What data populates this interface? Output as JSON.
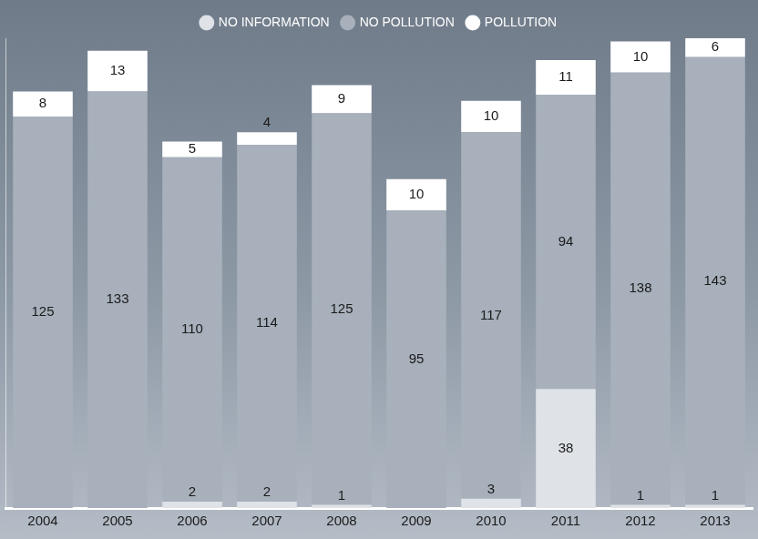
{
  "chart_data": {
    "type": "bar",
    "stacked": true,
    "data_labels": true,
    "tick_labels": "x",
    "legend": "top",
    "grid": false,
    "categories": [
      "2004",
      "2005",
      "2006",
      "2007",
      "2008",
      "2009",
      "2010",
      "2011",
      "2012",
      "2013"
    ],
    "ylim": [
      0,
      150
    ],
    "series": [
      {
        "name": "NO INFORMATION",
        "color": "#dfe3e8",
        "values": [
          null,
          null,
          2,
          2,
          1,
          null,
          3,
          38,
          1,
          1
        ]
      },
      {
        "name": "NO POLLUTION",
        "color": "#a7b0bb",
        "values": [
          125,
          133,
          110,
          114,
          125,
          95,
          117,
          94,
          138,
          143
        ]
      },
      {
        "name": "POLLUTION",
        "color": "#ffffff",
        "values": [
          8,
          13,
          5,
          4,
          9,
          10,
          10,
          11,
          10,
          6
        ]
      }
    ]
  }
}
